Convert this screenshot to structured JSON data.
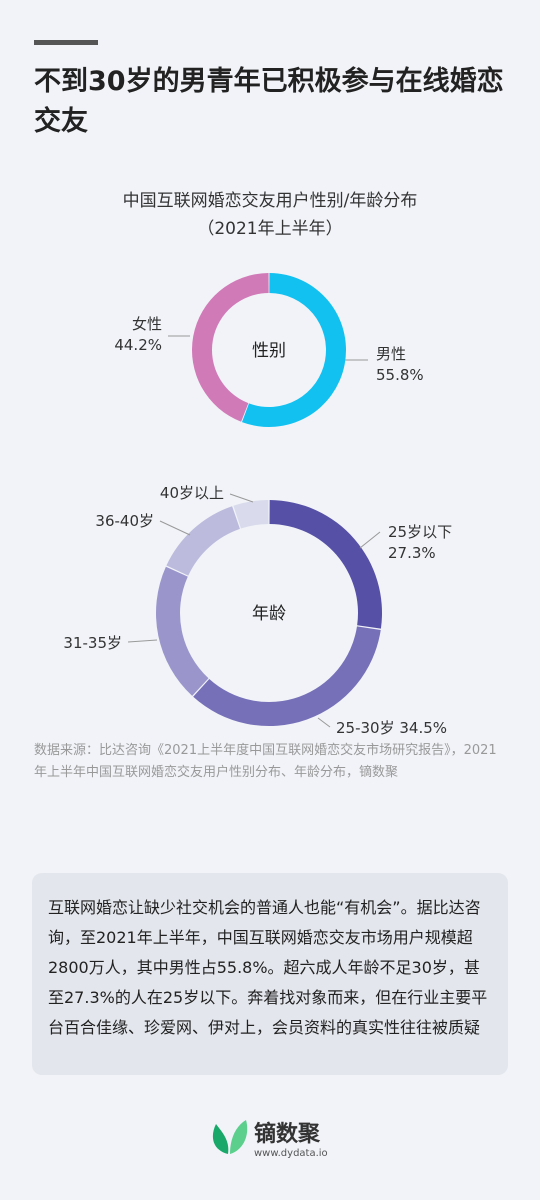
{
  "headline": "不到30岁的男青年已积极参与在线婚恋交友",
  "chart_title_line1": "中国互联网婚恋交友用户性别/年龄分布",
  "chart_title_line2": "（2021年上半年）",
  "chart_data": [
    {
      "type": "pie",
      "center_label": "性别",
      "categories": [
        "男性",
        "女性"
      ],
      "values": [
        55.8,
        44.2
      ],
      "value_labels": [
        "55.8%",
        "44.2%"
      ],
      "colors": [
        "#12c1f0",
        "#d17ab8"
      ]
    },
    {
      "type": "pie",
      "center_label": "年龄",
      "categories": [
        "25岁以下",
        "25-30岁",
        "31-35岁",
        "36-40岁",
        "40岁以上"
      ],
      "values": [
        27.3,
        34.5,
        20.0,
        13.0,
        5.2
      ],
      "value_labels": [
        "27.3%",
        "34.5%",
        "",
        "",
        ""
      ],
      "colors": [
        "#5650a6",
        "#7670b8",
        "#9a96cc",
        "#bcbbdd",
        "#d9dbec"
      ]
    }
  ],
  "source": "数据来源：比达咨询《2021上半年度中国互联网婚恋交友市场研究报告》，2021年上半年中国互联网婚恋交友用户性别分布、年龄分布，镝数聚",
  "summary": "互联网婚恋让缺少社交机会的普通人也能“有机会”。据比达咨询，至2021年上半年，中国互联网婚恋交友市场用户规模超2800万人，其中男性占55.8%。超六成人年龄不足30岁，甚至27.3%的人在25岁以下。奔着找对象而来，但在行业主要平台百合佳缘、珍爱网、伊对上，会员资料的真实性往往被质疑",
  "logo": {
    "name": "镝数聚",
    "url": "www.dydata.io",
    "leaf_colors": [
      "#1aa86a",
      "#5ccf8c"
    ]
  }
}
